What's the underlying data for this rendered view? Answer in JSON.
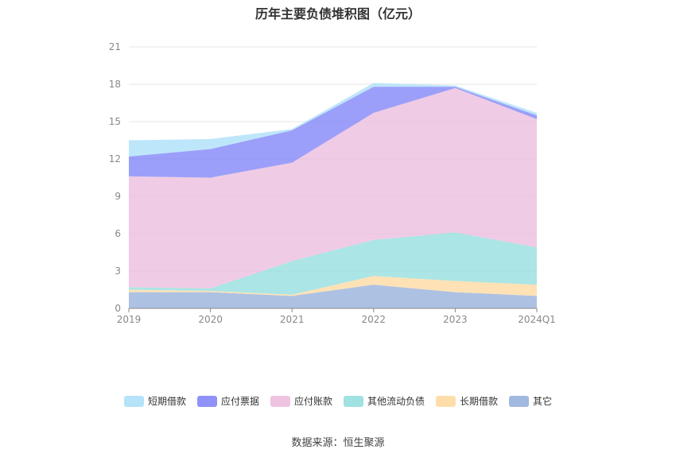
{
  "chart_data": {
    "type": "area",
    "stacked": true,
    "title": "历年主要负债堆积图（亿元）",
    "categories": [
      "2019",
      "2020",
      "2021",
      "2022",
      "2023",
      "2024Q1"
    ],
    "ylim": [
      0,
      21
    ],
    "yticks": [
      0,
      3,
      6,
      9,
      12,
      15,
      18,
      21
    ],
    "grid": true,
    "legend_position": "bottom",
    "series": [
      {
        "name": "其它",
        "color": "#91acd9",
        "values": [
          1.3,
          1.3,
          1.0,
          1.9,
          1.3,
          1.0
        ]
      },
      {
        "name": "长期借款",
        "color": "#fdd89c",
        "values": [
          0.2,
          0.1,
          0.1,
          0.7,
          0.9,
          0.9
        ]
      },
      {
        "name": "其他流动负债",
        "color": "#8fdcdc",
        "values": [
          0.2,
          0.2,
          2.7,
          2.9,
          3.9,
          3.0
        ]
      },
      {
        "name": "应付账款",
        "color": "#ebb9dc",
        "values": [
          8.9,
          8.9,
          7.9,
          10.2,
          11.6,
          10.3
        ]
      },
      {
        "name": "应付票据",
        "color": "#7b7ff7",
        "values": [
          1.6,
          2.3,
          2.6,
          2.1,
          0.1,
          0.3
        ]
      },
      {
        "name": "短期借款",
        "color": "#a8def8",
        "values": [
          1.3,
          0.8,
          0.1,
          0.3,
          0.1,
          0.2
        ]
      }
    ]
  },
  "legend_order": [
    "短期借款",
    "应付票据",
    "应付账款",
    "其他流动负债",
    "长期借款",
    "其它"
  ],
  "source_text": "数据来源：恒生聚源"
}
